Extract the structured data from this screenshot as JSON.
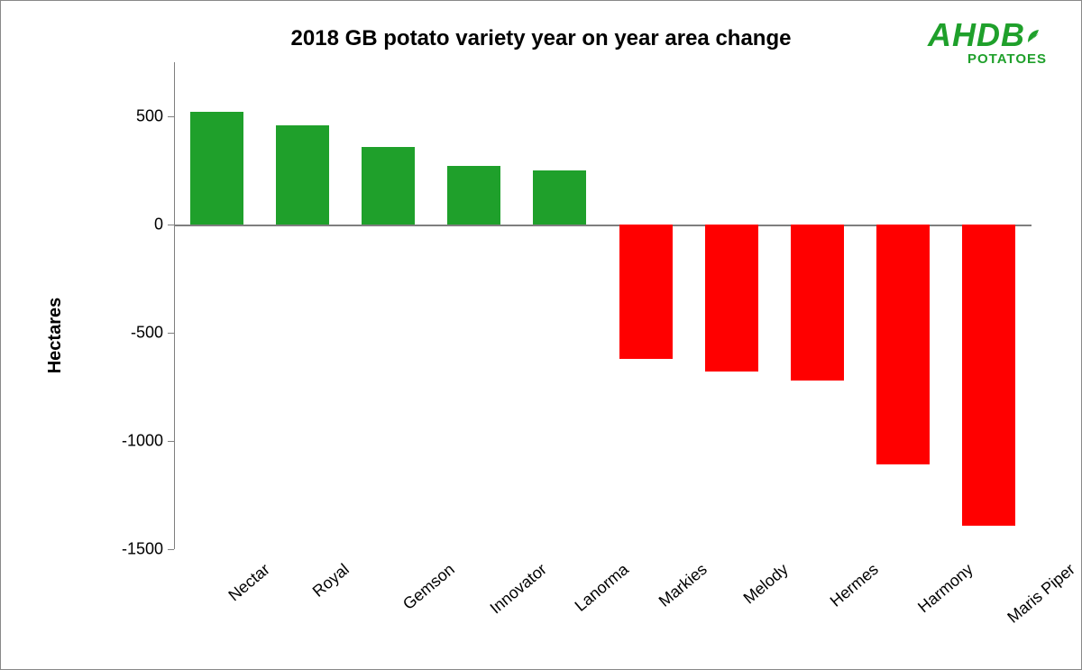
{
  "chart": {
    "type": "bar",
    "title": "2018 GB potato variety year on year area change",
    "title_fontsize": 24,
    "ylabel": "Hectares",
    "ylabel_fontsize": 20,
    "ymin": -1500,
    "ymax": 750,
    "yticks": [
      -1500,
      -1000,
      -500,
      0,
      500
    ],
    "ytick_fontsize": 18,
    "xlabel_fontsize": 18,
    "categories": [
      "Nectar",
      "Royal",
      "Gemson",
      "Innovator",
      "Lanorma",
      "Markies",
      "Melody",
      "Hermes",
      "Harmony",
      "Maris Piper"
    ],
    "values": [
      520,
      460,
      360,
      270,
      250,
      -620,
      -680,
      -720,
      -1110,
      -1390
    ],
    "positive_color": "#1fa02b",
    "negative_color": "#ff0000",
    "background_color": "#ffffff",
    "axis_color": "#7f7f7f",
    "text_color": "#000000",
    "bar_width_ratio": 0.62
  },
  "logo": {
    "brand": "AHDB",
    "sub": "POTATOES",
    "color": "#1fa02b"
  }
}
